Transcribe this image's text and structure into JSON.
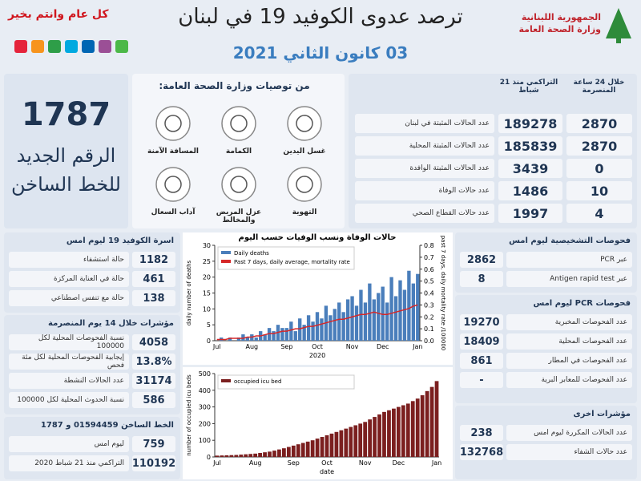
{
  "header": {
    "greeting": "كل عام وانتم بخير",
    "title": "ترصد عدوى الكوفيد 19 في لبنان",
    "date": "03 كانون الثاني 2021",
    "ministry": [
      "الجمهورية اللبنانية",
      "وزارة الصحة العامة"
    ]
  },
  "hotline": {
    "number": 1787,
    "label": [
      "الرقم الجديد",
      "للخط الساخن"
    ]
  },
  "recommendations": {
    "title": "من توصيات وزارة الصحة العامة:",
    "items": [
      "غسل اليدين",
      "الكمامة",
      "المسافة الآمنة",
      "التهوية",
      "عزل المريض والمخالط",
      "آداب السعال"
    ]
  },
  "summary": {
    "headers": [
      "خلال 24 ساعة المنصرمة",
      "التراكمي منذ 21 شباط"
    ],
    "rows": [
      {
        "label": "عدد الحالات المثبتة في لبنان",
        "day": 2870,
        "total": 189278
      },
      {
        "label": "عدد الحالات المثبتة المحلية",
        "day": 2870,
        "total": 185839
      },
      {
        "label": "عدد الحالات المثبتة الوافدة",
        "day": 0,
        "total": 3439
      },
      {
        "label": "عدد حالات الوفاة",
        "day": 10,
        "total": 1486
      },
      {
        "label": "عدد حالات القطاع الصحي",
        "day": 4,
        "total": 1997
      }
    ]
  },
  "beds": {
    "title": "اسرة الكوفيد 19 ليوم امس",
    "rows": [
      {
        "value": 1182,
        "label": "حالة استشفاء"
      },
      {
        "value": 461,
        "label": "حالة في العناية المركزة"
      },
      {
        "value": 138,
        "label": "حالة مع تنفس اصطناعي"
      }
    ]
  },
  "indicators": {
    "title": "مؤشرات خلال 14 يوم المنصرمة",
    "rows": [
      {
        "value": 4058,
        "label": "نسبة الفحوصات المحلية لكل 100000"
      },
      {
        "value": "13.8%",
        "label": "إيجابية الفحوصات المحلية لكل مئة فحص"
      },
      {
        "value": 31174,
        "label": "عدد الحالات النشطة"
      },
      {
        "value": 586,
        "label": "نسبة الحدوث المحلية لكل 100000"
      }
    ]
  },
  "hotline_calls": {
    "title": "الخط الساخن 01594459 و 1787",
    "rows": [
      {
        "value": 759,
        "label": "ليوم امس"
      },
      {
        "value": 110192,
        "label": "التراكمي منذ 21 شباط 2020"
      }
    ]
  },
  "diagnostics": {
    "title": "فحوصات التشخيصية ليوم امس",
    "rows": [
      {
        "value": 2862,
        "label": "عبر PCR"
      },
      {
        "value": 8,
        "label": "عبر Antigen rapid test"
      }
    ]
  },
  "pcr": {
    "title": "فحوصات PCR ليوم امس",
    "rows": [
      {
        "value": 19270,
        "label": "عدد الفحوصات المخبرية"
      },
      {
        "value": 18409,
        "label": "عدد الفحوصات المحلية"
      },
      {
        "value": 861,
        "label": "عدد الفحوصات في المطار"
      },
      {
        "value": "-",
        "label": "عدد الفحوصات للمعابر البرية"
      }
    ]
  },
  "other": {
    "title": "مؤشرات اخرى",
    "rows": [
      {
        "value": 238,
        "label": "عدد الحالات المكررة ليوم امس"
      },
      {
        "value": 132768,
        "label": "عدد حالات الشفاء"
      }
    ]
  },
  "chart_data": [
    {
      "type": "bar",
      "title": "حالات الوفاة ونسب الوفيات حسب اليوم",
      "ylabel": "daily number of deaths",
      "y2label": "past 7 days, daily mortality rate /100000",
      "xlabel": "2020",
      "categories": [
        "Jul",
        null,
        null,
        null,
        null,
        null,
        null,
        null,
        "Aug",
        null,
        null,
        null,
        null,
        null,
        null,
        null,
        "Sep",
        null,
        null,
        null,
        null,
        null,
        null,
        "Oct",
        null,
        null,
        null,
        null,
        null,
        null,
        null,
        "Nov",
        null,
        null,
        null,
        null,
        null,
        null,
        "Dec",
        null,
        null,
        null,
        null,
        null,
        null,
        null,
        "Jan"
      ],
      "series": [
        {
          "name": "Daily deaths",
          "color": "#4a7ebb",
          "values": [
            0,
            1,
            0,
            1,
            0,
            1,
            2,
            1,
            2,
            1,
            3,
            2,
            4,
            3,
            5,
            4,
            4,
            6,
            3,
            7,
            5,
            8,
            6,
            9,
            7,
            11,
            8,
            10,
            12,
            9,
            13,
            14,
            11,
            16,
            12,
            18,
            13,
            15,
            17,
            12,
            20,
            14,
            19,
            16,
            22,
            18,
            21
          ]
        },
        {
          "name": "Past 7 days, daily average, mortality rate",
          "color": "#d62728",
          "axis": "y2",
          "values": [
            0.01,
            0.01,
            0.01,
            0.02,
            0.02,
            0.02,
            0.02,
            0.03,
            0.03,
            0.04,
            0.04,
            0.05,
            0.06,
            0.06,
            0.07,
            0.08,
            0.08,
            0.09,
            0.1,
            0.1,
            0.11,
            0.12,
            0.12,
            0.13,
            0.14,
            0.15,
            0.16,
            0.17,
            0.18,
            0.18,
            0.19,
            0.2,
            0.21,
            0.22,
            0.22,
            0.23,
            0.24,
            0.23,
            0.22,
            0.22,
            0.23,
            0.24,
            0.25,
            0.26,
            0.27,
            0.29,
            0.3
          ]
        }
      ],
      "ylim": [
        0,
        30
      ],
      "yticks": [
        0,
        5,
        10,
        15,
        20,
        25,
        30
      ],
      "y2lim": [
        0,
        0.8
      ],
      "y2ticks": [
        {
          "value": 0,
          "label": "0.0"
        },
        0.1,
        0.2,
        0.3,
        0.4,
        0.5,
        0.6,
        0.7,
        0.8
      ],
      "legend": "top-left"
    },
    {
      "type": "bar",
      "ylabel": "number of occupied icu beds",
      "xlabel": "date",
      "categories": [
        "Jul",
        null,
        null,
        null,
        null,
        null,
        null,
        null,
        "Aug",
        null,
        null,
        null,
        null,
        null,
        null,
        null,
        "Sep",
        null,
        null,
        null,
        null,
        null,
        null,
        "Oct",
        null,
        null,
        null,
        null,
        null,
        null,
        null,
        "Nov",
        null,
        null,
        null,
        null,
        null,
        null,
        "Dec",
        null,
        null,
        null,
        null,
        null,
        null,
        null,
        "Jan"
      ],
      "series": [
        {
          "name": "occupied icu bed",
          "color": "#7b1f1f",
          "values": [
            8,
            9,
            10,
            11,
            12,
            14,
            16,
            18,
            20,
            24,
            28,
            32,
            38,
            45,
            52,
            60,
            68,
            76,
            84,
            92,
            100,
            110,
            120,
            130,
            140,
            150,
            160,
            170,
            180,
            190,
            200,
            210,
            225,
            240,
            255,
            270,
            280,
            290,
            300,
            310,
            320,
            335,
            350,
            370,
            395,
            420,
            455
          ]
        }
      ],
      "ylim": [
        0,
        500
      ],
      "yticks": [
        0,
        100,
        200,
        300,
        400,
        500
      ],
      "legend": "top-left"
    }
  ]
}
